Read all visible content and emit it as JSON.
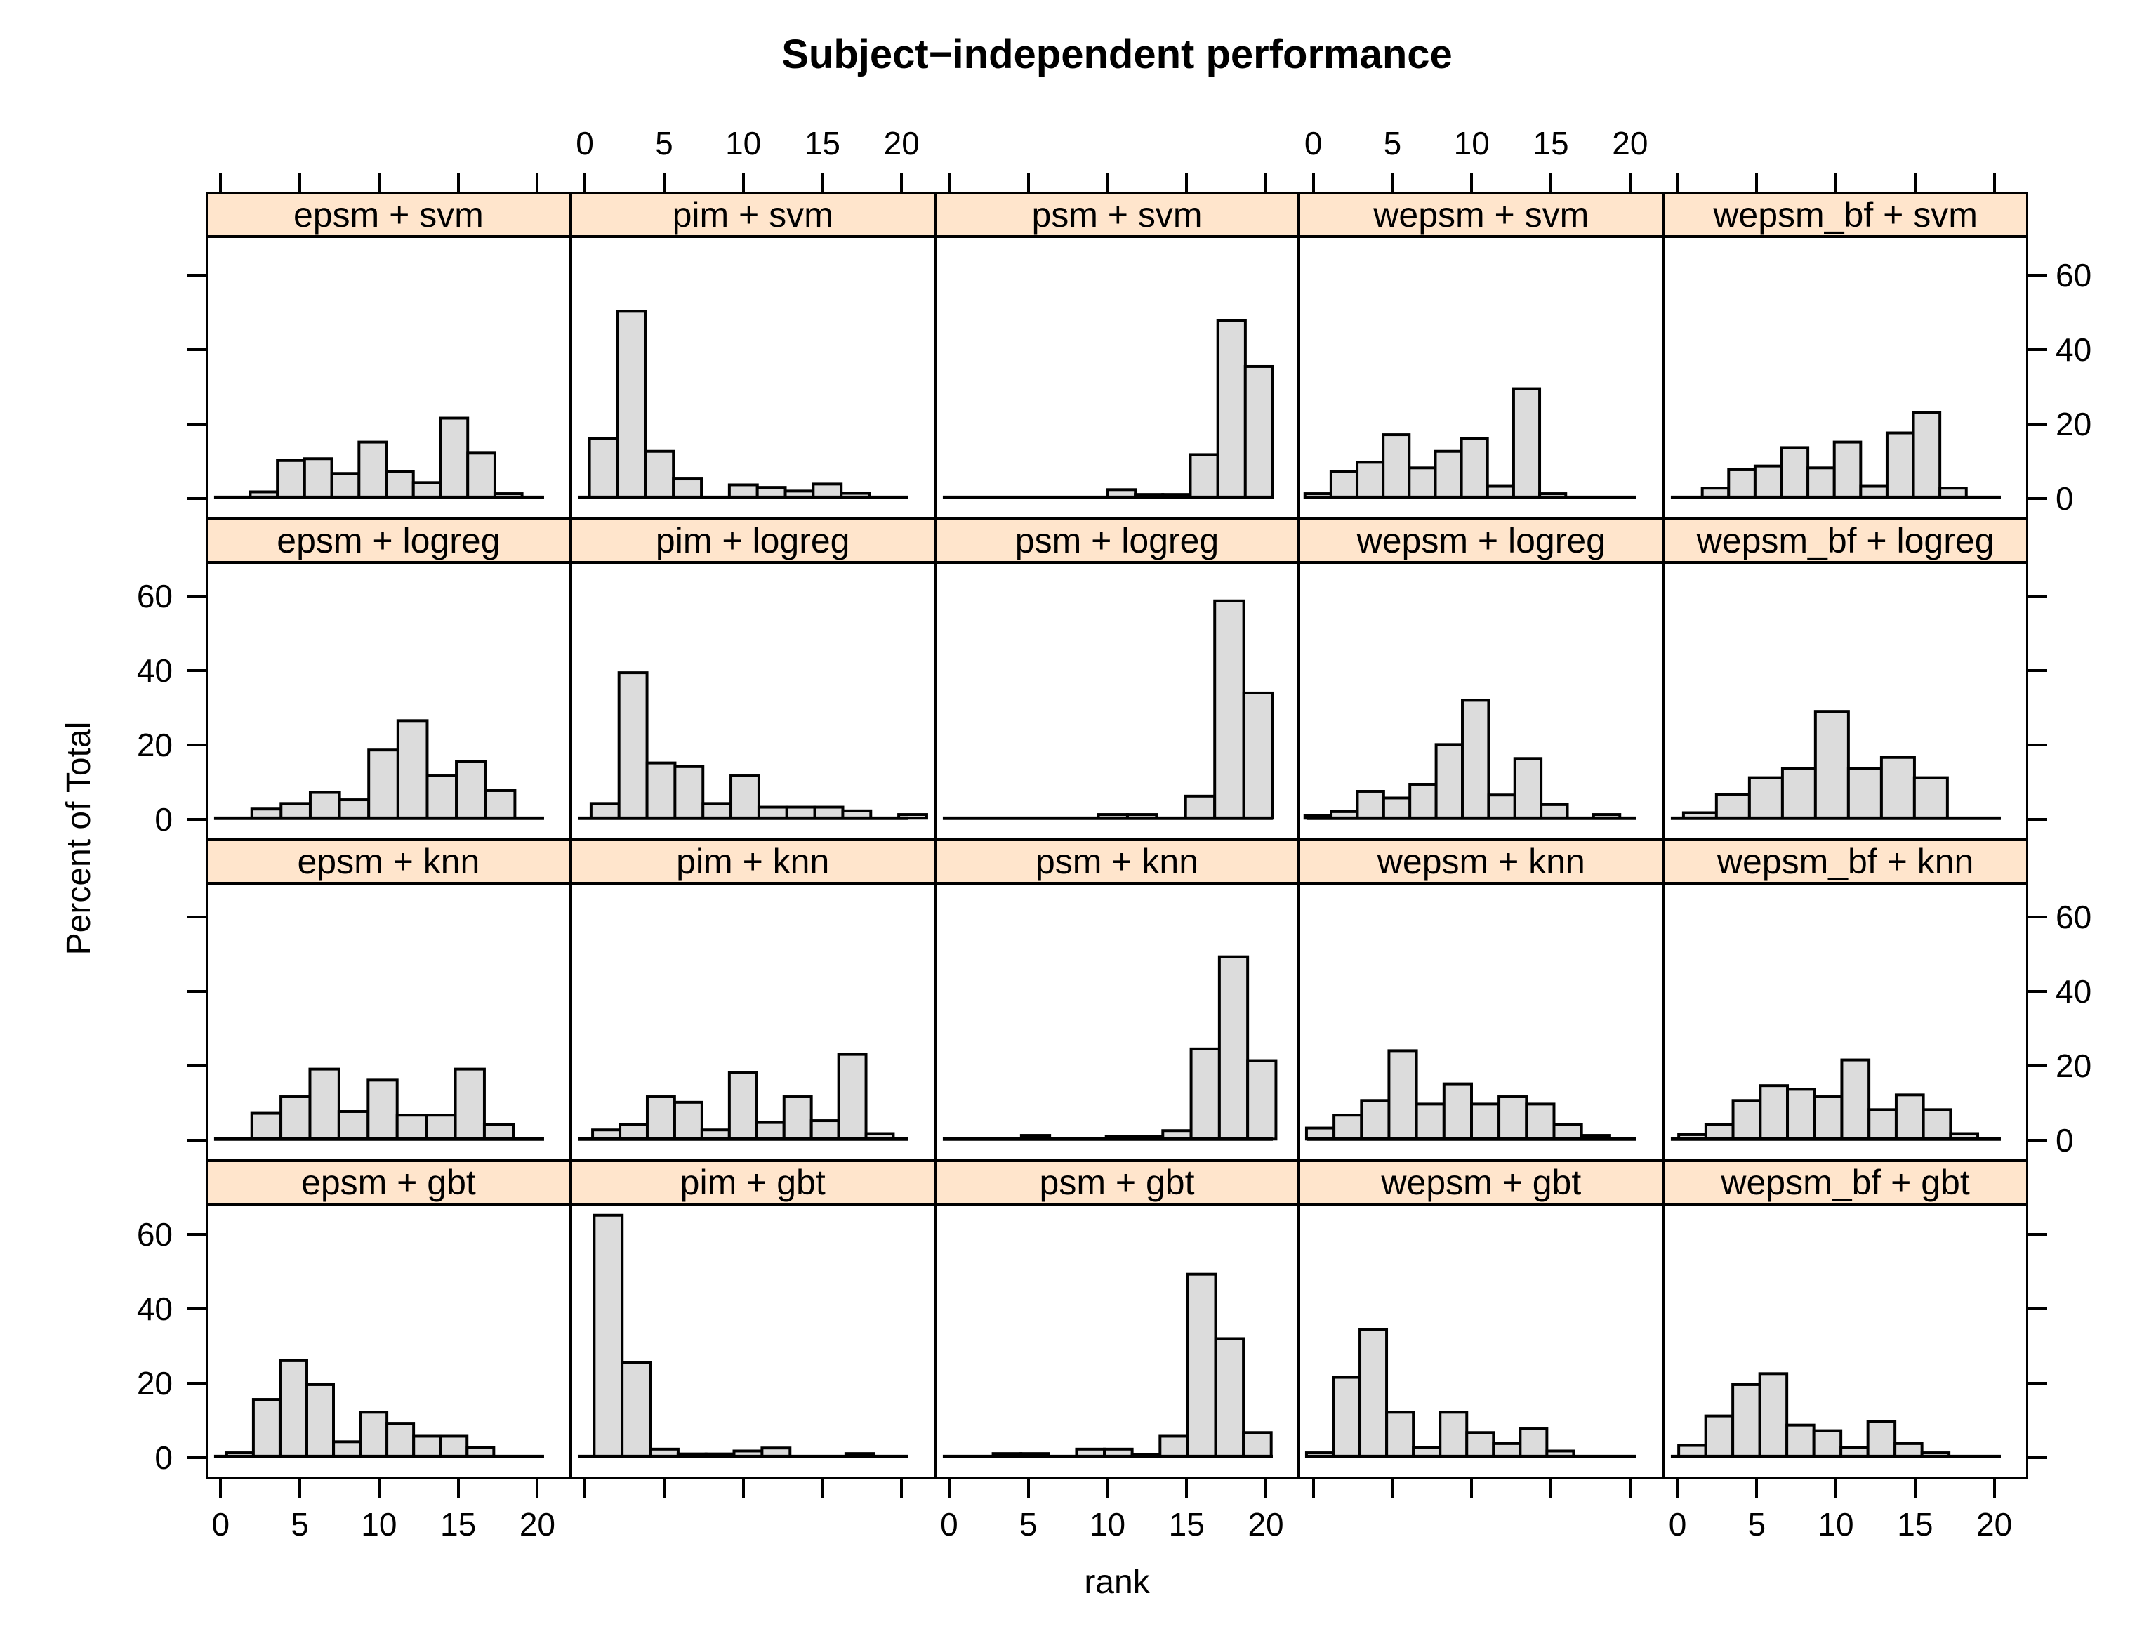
{
  "title": "Subject−independent performance",
  "axes": {
    "x_label": "rank",
    "y_label": "Percent of Total",
    "x_tick_labels": [
      "0",
      "5",
      "10",
      "15",
      "20"
    ],
    "y_tick_labels": [
      "0",
      "20",
      "40",
      "60"
    ]
  },
  "colors": {
    "strip_bg": "#FFE5CC",
    "bar_fill": "#DCDCDC",
    "line": "#000000"
  },
  "chart_data": {
    "type": "histogram-grid",
    "title": "Subject−independent performance",
    "xlabel": "rank",
    "ylabel": "Percent of Total",
    "columns": [
      "epsm",
      "pim",
      "psm",
      "wepsm",
      "wepsm_bf"
    ],
    "rows": [
      "svm",
      "logreg",
      "knn",
      "gbt"
    ],
    "x_ticks": [
      0,
      5,
      10,
      15,
      20
    ],
    "y_ticks": [
      0,
      20,
      40,
      60
    ],
    "x_range": [
      -0.9,
      22.1
    ],
    "y_range": [
      0,
      70
    ],
    "y_unit": "percent of total",
    "top_label_columns": [
      1,
      3
    ],
    "bottom_label_columns": [
      0,
      2,
      4
    ],
    "left_label_rows": [
      1,
      3
    ],
    "right_label_rows": [
      0,
      2
    ],
    "panels": [
      {
        "label": "epsm + svm",
        "row": 0,
        "col": 0,
        "x0": 1.8,
        "bin_width": 1.73,
        "heights": [
          1.5,
          10,
          10.5,
          6.5,
          15,
          7,
          4,
          21.5,
          12,
          1
        ]
      },
      {
        "label": "pim + svm",
        "row": 0,
        "col": 1,
        "x0": 0.2,
        "bin_width": 1.78,
        "heights": [
          16,
          50.5,
          12.5,
          5,
          0,
          3.4,
          2.7,
          1.7,
          3.6,
          1.1
        ]
      },
      {
        "label": "psm + svm",
        "row": 0,
        "col": 2,
        "x0": 10,
        "bin_width": 1.75,
        "heights": [
          2.1,
          0.8,
          0.8,
          11.6,
          48,
          35.5
        ]
      },
      {
        "label": "wepsm + svm",
        "row": 0,
        "col": 3,
        "x0": -0.6,
        "bin_width": 1.66,
        "heights": [
          1,
          7,
          9.5,
          17,
          8,
          12.5,
          16,
          3,
          29.5,
          1
        ]
      },
      {
        "label": "wepsm_bf + svm",
        "row": 0,
        "col": 4,
        "x0": 1.5,
        "bin_width": 1.68,
        "heights": [
          2.5,
          7.5,
          8.5,
          13.5,
          8,
          15,
          3,
          17.5,
          23,
          2.5
        ]
      },
      {
        "label": "epsm + logreg",
        "row": 1,
        "col": 0,
        "x0": 1.9,
        "bin_width": 1.86,
        "heights": [
          2.5,
          4,
          7,
          5,
          18.5,
          26.5,
          11.5,
          15.5,
          7.5
        ]
      },
      {
        "label": "pim + logreg",
        "row": 1,
        "col": 1,
        "x0": 0.3,
        "bin_width": 1.78,
        "heights": [
          4,
          39.5,
          15,
          14,
          4,
          11.5,
          3,
          3,
          3,
          2,
          0,
          1
        ]
      },
      {
        "label": "psm + logreg",
        "row": 1,
        "col": 2,
        "x0": 9.4,
        "bin_width": 1.85,
        "heights": [
          1,
          1,
          0,
          6,
          59,
          34
        ]
      },
      {
        "label": "wepsm + logreg",
        "row": 1,
        "col": 3,
        "x0": -0.6,
        "bin_width": 1.67,
        "heights": [
          0.8,
          1.8,
          7.3,
          5.5,
          9.2,
          20,
          32,
          6.3,
          16.2,
          3.7,
          0,
          1
        ]
      },
      {
        "label": "wepsm_bf + logreg",
        "row": 1,
        "col": 4,
        "x0": 0.3,
        "bin_width": 2.1,
        "heights": [
          1.5,
          6.5,
          11,
          13.5,
          29,
          13.5,
          16.5,
          11
        ]
      },
      {
        "label": "epsm + knn",
        "row": 2,
        "col": 0,
        "x0": 1.9,
        "bin_width": 1.85,
        "heights": [
          7,
          11.5,
          19,
          7.5,
          16,
          6.5,
          6.5,
          19,
          4
        ]
      },
      {
        "label": "pim + knn",
        "row": 2,
        "col": 1,
        "x0": 0.4,
        "bin_width": 1.74,
        "heights": [
          2.5,
          4,
          11.5,
          10,
          2.5,
          18,
          4.5,
          11.5,
          5,
          23,
          1.5
        ]
      },
      {
        "label": "psm + knn",
        "row": 2,
        "col": 2,
        "x0": 4.5,
        "bin_width": 1.8,
        "heights": [
          1,
          0,
          0,
          0.7,
          0.7,
          2.3,
          24.5,
          49.5,
          21.3
        ]
      },
      {
        "label": "wepsm + knn",
        "row": 2,
        "col": 3,
        "x0": -0.5,
        "bin_width": 1.75,
        "heights": [
          3,
          6.5,
          10.5,
          24,
          9.5,
          15,
          9.5,
          11.5,
          9.5,
          4,
          1
        ]
      },
      {
        "label": "wepsm_bf + knn",
        "row": 2,
        "col": 4,
        "x0": 0,
        "bin_width": 1.73,
        "heights": [
          1.2,
          4,
          10.5,
          14.5,
          13.5,
          11.5,
          21.5,
          8,
          12,
          8,
          1.5
        ]
      },
      {
        "label": "epsm + gbt",
        "row": 3,
        "col": 0,
        "x0": 0.3,
        "bin_width": 1.7,
        "heights": [
          1,
          15.5,
          26,
          19.5,
          4,
          12,
          9,
          5.5,
          5.5,
          2.5
        ]
      },
      {
        "label": "pim + gbt",
        "row": 3,
        "col": 1,
        "x0": 0.5,
        "bin_width": 1.78,
        "heights": [
          65.5,
          25.5,
          2,
          0.7,
          0.7,
          1.5,
          2.3,
          0,
          0,
          0.8
        ]
      },
      {
        "label": "psm + gbt",
        "row": 3,
        "col": 2,
        "x0": 2.7,
        "bin_width": 1.77,
        "heights": [
          0.8,
          0.8,
          0,
          2,
          2,
          0.5,
          5.5,
          49.5,
          32,
          6.5
        ]
      },
      {
        "label": "wepsm + gbt",
        "row": 3,
        "col": 3,
        "x0": -0.5,
        "bin_width": 1.7,
        "heights": [
          1,
          21.5,
          34.5,
          12,
          2.5,
          12,
          6.5,
          3.5,
          7.5,
          1.5
        ]
      },
      {
        "label": "wepsm_bf + gbt",
        "row": 3,
        "col": 4,
        "x0": 0,
        "bin_width": 1.72,
        "heights": [
          3,
          11,
          19.5,
          22.5,
          8.5,
          7,
          2.5,
          9.5,
          3.5,
          1
        ]
      }
    ]
  }
}
